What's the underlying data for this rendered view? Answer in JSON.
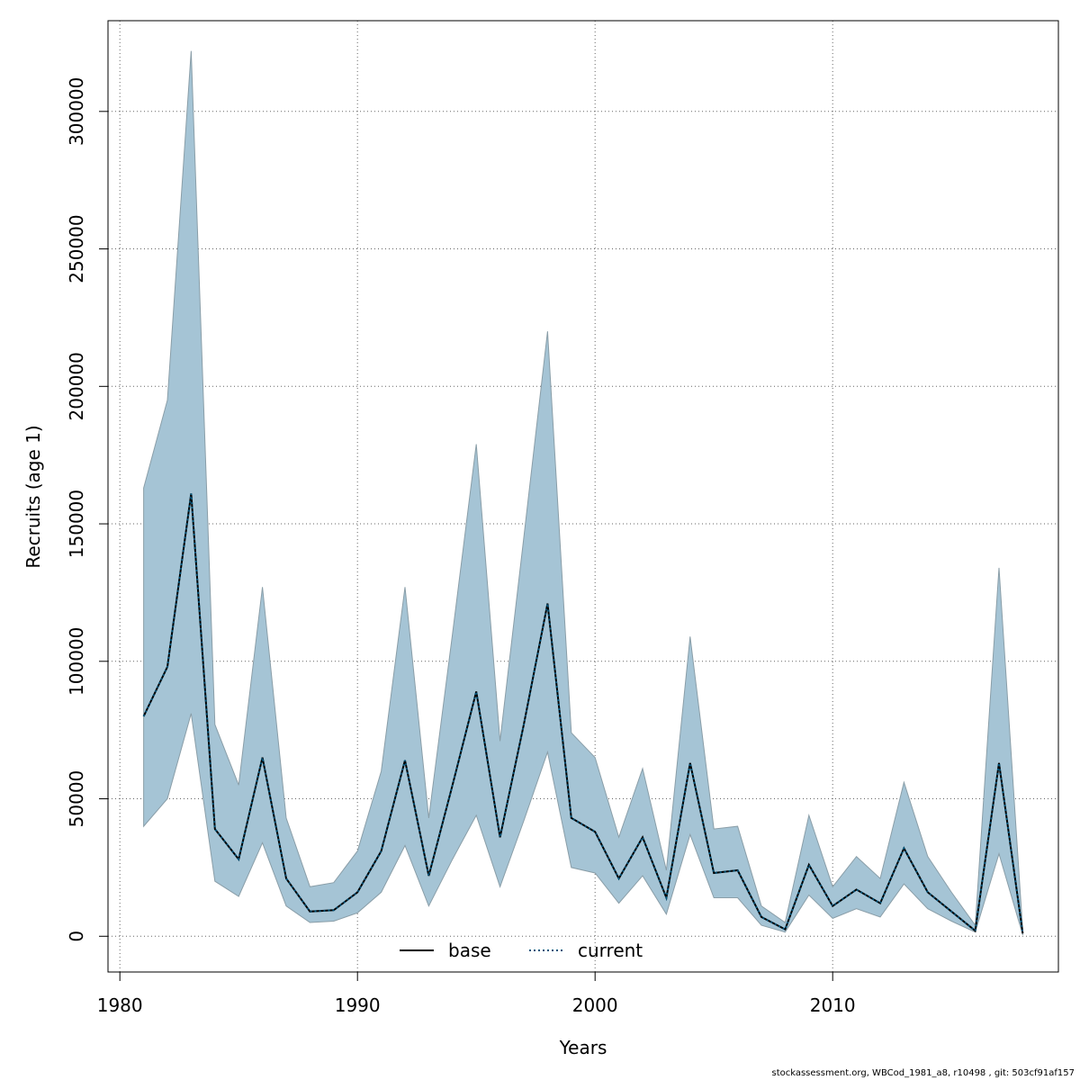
{
  "chart_data": {
    "type": "line",
    "xlabel": "Years",
    "ylabel": "Recruits (age 1)",
    "xlim": [
      1979.5,
      2019.5
    ],
    "ylim": [
      -13000,
      333000
    ],
    "x_ticks": [
      1980,
      1990,
      2000,
      2010
    ],
    "y_ticks": [
      0,
      50000,
      100000,
      150000,
      200000,
      250000,
      300000
    ],
    "x_tick_labels": [
      "1980",
      "1990",
      "2000",
      "2010"
    ],
    "y_tick_labels": [
      "0",
      "50000",
      "100000",
      "150000",
      "200000",
      "250000",
      "300000"
    ],
    "grid": true,
    "legend_position": "bottom",
    "years": [
      1981,
      1982,
      1983,
      1984,
      1985,
      1986,
      1987,
      1988,
      1989,
      1990,
      1991,
      1992,
      1993,
      1994,
      1995,
      1996,
      1997,
      1998,
      1999,
      2000,
      2001,
      2002,
      2003,
      2004,
      2005,
      2006,
      2007,
      2008,
      2009,
      2010,
      2011,
      2012,
      2013,
      2014,
      2015,
      2016,
      2017,
      2018
    ],
    "series": [
      {
        "name": "base",
        "line_style": "solid",
        "color": "#000000",
        "values": [
          80000,
          98000,
          161000,
          39000,
          28000,
          65000,
          21000,
          9000,
          9500,
          16000,
          31000,
          64000,
          22000,
          55000,
          89000,
          36000,
          77000,
          121000,
          43000,
          38000,
          21000,
          36000,
          14000,
          63000,
          23000,
          24000,
          7000,
          2500,
          26000,
          11000,
          17000,
          12000,
          32000,
          16000,
          9000,
          2000,
          63000,
          1000
        ]
      },
      {
        "name": "current",
        "line_style": "dotted",
        "color": "#00547a",
        "values": [
          80000,
          98000,
          161000,
          39000,
          28000,
          65000,
          21000,
          9000,
          9500,
          16000,
          31000,
          64000,
          22000,
          55000,
          89000,
          36000,
          77000,
          121000,
          43000,
          38000,
          21000,
          36000,
          14000,
          63000,
          23000,
          24000,
          7000,
          2500,
          26000,
          11000,
          17000,
          12000,
          32000,
          16000,
          9000,
          2000,
          63000,
          1000
        ]
      }
    ],
    "band": {
      "upper": [
        163000,
        195000,
        322000,
        77000,
        55000,
        127000,
        43000,
        18000,
        19500,
        31000,
        60000,
        127000,
        43000,
        110000,
        179000,
        71000,
        145000,
        220000,
        74000,
        65000,
        36000,
        61000,
        24000,
        109000,
        39000,
        40000,
        11000,
        5000,
        44000,
        18000,
        29000,
        21000,
        56000,
        29000,
        16000,
        4000,
        134000,
        2000
      ],
      "lower": [
        40000,
        50000,
        81000,
        20000,
        14500,
        34000,
        11000,
        5000,
        5500,
        8500,
        16000,
        33000,
        11000,
        28000,
        44000,
        18000,
        42000,
        67000,
        25000,
        23000,
        12000,
        22000,
        8000,
        37000,
        14000,
        14000,
        4000,
        1500,
        15000,
        6500,
        10000,
        7000,
        19000,
        10000,
        5500,
        1500,
        30000,
        500
      ],
      "color": "#a5c4d5"
    },
    "footer": "stockassessment.org, WBCod_1981_a8, r10498 , git: 503cf91af157"
  }
}
